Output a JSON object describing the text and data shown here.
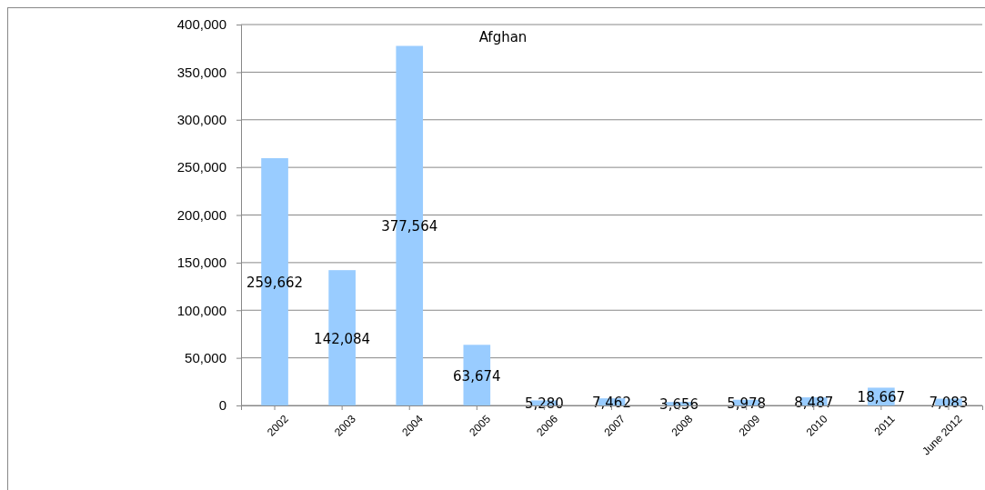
{
  "chart_data": {
    "type": "bar",
    "title": "Afghan",
    "categories": [
      "2002",
      "2003",
      "2004",
      "2005",
      "2006",
      "2007",
      "2008",
      "2009",
      "2010",
      "2011",
      "June 2012"
    ],
    "values": [
      259662,
      142084,
      377564,
      63674,
      5280,
      7462,
      3656,
      5978,
      8487,
      18667,
      7083
    ],
    "value_labels": [
      "259,662",
      "142,084",
      "377,564",
      "63,674",
      "5,280",
      "7,462",
      "3,656",
      "5,978",
      "8,487",
      "18,667",
      "7,083"
    ],
    "color": "#99ccff",
    "ylim": [
      0,
      400000
    ],
    "yticks": [
      0,
      {
        "value": 50000,
        "label": "50,000"
      },
      {
        "value": 100000,
        "label": "100,000"
      },
      {
        "value": 150000,
        "label": "150,000"
      },
      {
        "value": 200000,
        "label": "200,000"
      },
      {
        "value": 250000,
        "label": "250,000"
      },
      {
        "value": 300000,
        "label": "300,000"
      },
      {
        "value": 350000,
        "label": "350,000"
      },
      {
        "value": 400000,
        "label": "400,000"
      }
    ],
    "grid": "y"
  }
}
